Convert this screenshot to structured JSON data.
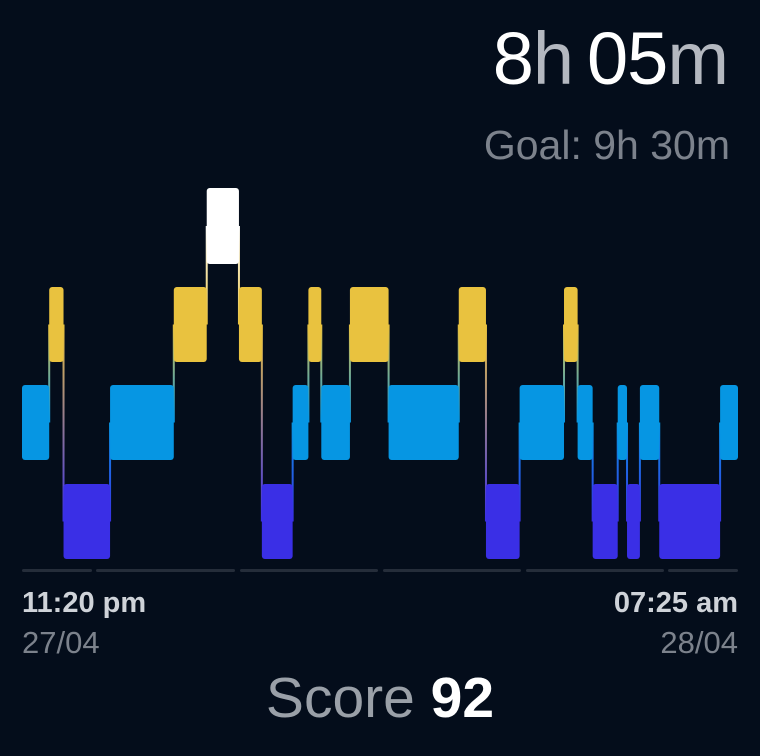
{
  "header": {
    "hours": "8",
    "hours_unit": "h",
    "minutes": "05",
    "minutes_unit": "m",
    "goal": "Goal: 9h 30m"
  },
  "timeline": {
    "start_time": "11:20 pm",
    "start_date": "27/04",
    "end_time": "07:25 am",
    "end_date": "28/04"
  },
  "score": {
    "label": "Score",
    "value": "92"
  },
  "colors": {
    "background": "#040d1b",
    "awake": "#ffffff",
    "rem": "#e9c23f",
    "light": "#0696e3",
    "deep": "#3a2fe6",
    "track": "#252d3a"
  },
  "chart_data": {
    "type": "hypnogram",
    "stages": [
      "Awake",
      "REM",
      "Light",
      "Deep"
    ],
    "x_unit": "fraction of night",
    "segments": [
      {
        "stage": "Light",
        "start": 0.0,
        "end": 0.038
      },
      {
        "stage": "REM",
        "start": 0.038,
        "end": 0.058
      },
      {
        "stage": "Deep",
        "start": 0.058,
        "end": 0.123
      },
      {
        "stage": "Light",
        "start": 0.123,
        "end": 0.212
      },
      {
        "stage": "REM",
        "start": 0.212,
        "end": 0.258
      },
      {
        "stage": "Awake",
        "start": 0.258,
        "end": 0.303
      },
      {
        "stage": "REM",
        "start": 0.303,
        "end": 0.335
      },
      {
        "stage": "Deep",
        "start": 0.335,
        "end": 0.378
      },
      {
        "stage": "Light",
        "start": 0.378,
        "end": 0.4
      },
      {
        "stage": "REM",
        "start": 0.4,
        "end": 0.418
      },
      {
        "stage": "Light",
        "start": 0.418,
        "end": 0.458
      },
      {
        "stage": "REM",
        "start": 0.458,
        "end": 0.512
      },
      {
        "stage": "Light",
        "start": 0.512,
        "end": 0.61
      },
      {
        "stage": "REM",
        "start": 0.61,
        "end": 0.648
      },
      {
        "stage": "Deep",
        "start": 0.648,
        "end": 0.695
      },
      {
        "stage": "Light",
        "start": 0.695,
        "end": 0.757
      },
      {
        "stage": "REM",
        "start": 0.757,
        "end": 0.776
      },
      {
        "stage": "Light",
        "start": 0.776,
        "end": 0.797
      },
      {
        "stage": "Deep",
        "start": 0.797,
        "end": 0.832
      },
      {
        "stage": "Light",
        "start": 0.832,
        "end": 0.845
      },
      {
        "stage": "Deep",
        "start": 0.845,
        "end": 0.863
      },
      {
        "stage": "Light",
        "start": 0.863,
        "end": 0.89
      },
      {
        "stage": "Deep",
        "start": 0.89,
        "end": 0.975
      },
      {
        "stage": "Light",
        "start": 0.975,
        "end": 1.0
      }
    ],
    "grid": false
  }
}
